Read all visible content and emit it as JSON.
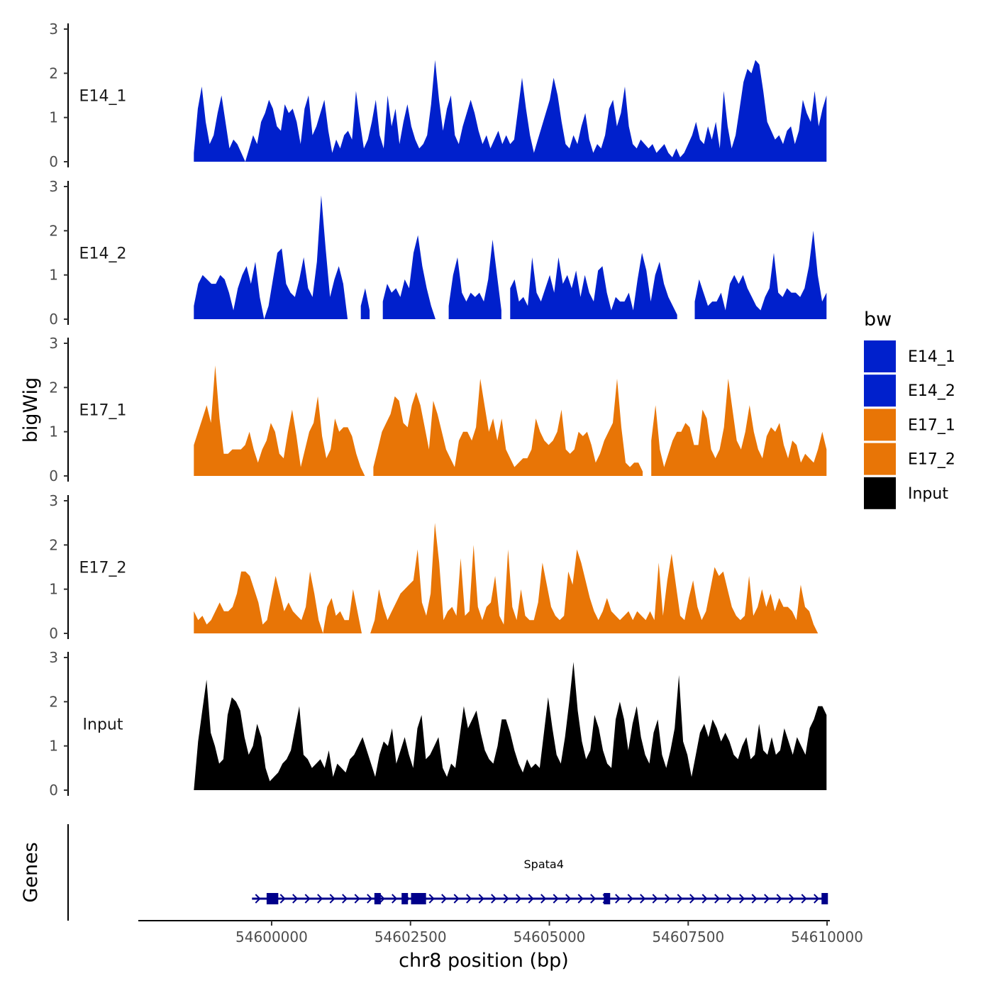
{
  "chart_data": {
    "type": "area",
    "chromosome": "chr8",
    "xlabel": "chr8 position (bp)",
    "ylabel": "bigWig",
    "genes_label": "Genes",
    "xlim": [
      54597600,
      54610050
    ],
    "x_ticks": [
      54600000,
      54602500,
      54605000,
      54607500,
      54610000
    ],
    "x_tick_labels": [
      "54600000",
      "54602500",
      "54605000",
      "54607500",
      "54610000"
    ],
    "ylim": [
      0,
      3
    ],
    "y_ticks": [
      0,
      1,
      2,
      3
    ],
    "y_tick_labels": [
      "0",
      "1",
      "2",
      "3"
    ],
    "track_start": 54598600,
    "track_end": 54609990,
    "colors": {
      "E14_1": "#0020cc",
      "E14_2": "#0020cc",
      "E17_1": "#e87506",
      "E17_2": "#e87506",
      "Input": "#000000",
      "gene": "#00008b"
    },
    "legend": {
      "title": "bw",
      "items": [
        {
          "label": "E14_1",
          "color": "#0020cc"
        },
        {
          "label": "E14_2",
          "color": "#0020cc"
        },
        {
          "label": "E17_1",
          "color": "#e87506"
        },
        {
          "label": "E17_2",
          "color": "#e87506"
        },
        {
          "label": "Input",
          "color": "#000000"
        }
      ]
    },
    "tracks": [
      {
        "name": "E14_1",
        "label": "E14_1",
        "color": "#0020cc",
        "values": [
          0.2,
          1.2,
          1.7,
          0.9,
          0.4,
          0.6,
          1.1,
          1.5,
          0.9,
          0.3,
          0.5,
          0.4,
          0.2,
          0,
          0.3,
          0.6,
          0.4,
          0.9,
          1.1,
          1.4,
          1.2,
          0.8,
          0.7,
          1.3,
          1.1,
          1.2,
          0.9,
          0.4,
          1.2,
          1.5,
          0.6,
          0.8,
          1.1,
          1.4,
          0.7,
          0.2,
          0.5,
          0.3,
          0.6,
          0.7,
          0.5,
          1.6,
          0.9,
          0.3,
          0.5,
          0.9,
          1.4,
          0.6,
          0.3,
          1.5,
          0.8,
          1.2,
          0.4,
          0.9,
          1.3,
          0.8,
          0.5,
          0.3,
          0.4,
          0.6,
          1.3,
          2.3,
          1.4,
          0.7,
          1.2,
          1.5,
          0.6,
          0.4,
          0.8,
          1.1,
          1.4,
          1.1,
          0.7,
          0.4,
          0.6,
          0.3,
          0.5,
          0.7,
          0.4,
          0.6,
          0.4,
          0.5,
          1.2,
          1.9,
          1.2,
          0.6,
          0.2,
          0.5,
          0.8,
          1.1,
          1.4,
          1.9,
          1.5,
          0.9,
          0.4,
          0.3,
          0.6,
          0.4,
          0.8,
          1.1,
          0.5,
          0.2,
          0.4,
          0.3,
          0.6,
          1.2,
          1.4,
          0.8,
          1.1,
          1.7,
          0.8,
          0.4,
          0.3,
          0.5,
          0.4,
          0.3,
          0.4,
          0.2,
          0.3,
          0.4,
          0.2,
          0.1,
          0.3,
          0.1,
          0.2,
          0.4,
          0.6,
          0.9,
          0.5,
          0.4,
          0.8,
          0.5,
          0.9,
          0.3,
          1.6,
          0.8,
          0.3,
          0.6,
          1.2,
          1.8,
          2.1,
          2.0,
          2.3,
          2.2,
          1.6,
          0.9,
          0.7,
          0.5,
          0.6,
          0.4,
          0.7,
          0.8,
          0.4,
          0.7,
          1.4,
          1.1,
          0.9,
          1.6,
          0.8,
          1.2,
          1.5
        ]
      },
      {
        "name": "E14_2",
        "label": "E14_2",
        "color": "#0020cc",
        "values": [
          0.3,
          0.8,
          1.0,
          0.9,
          0.8,
          0.8,
          1.0,
          0.9,
          0.6,
          0.2,
          0.7,
          1.0,
          1.2,
          0.8,
          1.3,
          0.5,
          0,
          0.3,
          0.9,
          1.5,
          1.6,
          0.8,
          0.6,
          0.5,
          0.9,
          1.4,
          0.7,
          0.5,
          1.3,
          2.8,
          1.6,
          0.5,
          0.9,
          1.2,
          0.8,
          0,
          null,
          null,
          0.3,
          0.7,
          0.2,
          null,
          null,
          0.4,
          0.8,
          0.6,
          0.7,
          0.5,
          0.9,
          0.7,
          1.5,
          1.9,
          1.2,
          0.7,
          0.3,
          0,
          null,
          null,
          0.3,
          1.0,
          1.4,
          0.6,
          0.4,
          0.6,
          0.5,
          0.6,
          0.4,
          0.9,
          1.8,
          1.0,
          0.2,
          null,
          0.7,
          0.9,
          0.4,
          0.5,
          0.3,
          1.4,
          0.6,
          0.4,
          0.7,
          1.0,
          0.6,
          1.4,
          0.8,
          1.0,
          0.7,
          1.1,
          0.5,
          1.0,
          0.6,
          0.4,
          1.1,
          1.2,
          0.6,
          0.2,
          0.5,
          0.4,
          0.4,
          0.6,
          0.2,
          0.9,
          1.5,
          1.1,
          0.4,
          1.0,
          1.3,
          0.8,
          0.5,
          0.3,
          0.1,
          null,
          null,
          null,
          0.4,
          0.9,
          0.6,
          0.3,
          0.4,
          0.4,
          0.6,
          0.2,
          0.8,
          1.0,
          0.8,
          1.0,
          0.7,
          0.5,
          0.3,
          0.2,
          0.5,
          0.7,
          1.5,
          0.6,
          0.5,
          0.7,
          0.6,
          0.6,
          0.5,
          0.7,
          1.2,
          2.0,
          1.0,
          0.4,
          0.6
        ]
      },
      {
        "name": "E17_1",
        "label": "E17_1",
        "color": "#e87506",
        "values": [
          0.7,
          1.0,
          1.3,
          1.6,
          1.2,
          2.5,
          1.3,
          0.5,
          0.5,
          0.6,
          0.6,
          0.6,
          0.7,
          1.0,
          0.6,
          0.3,
          0.6,
          0.8,
          1.2,
          1.0,
          0.5,
          0.4,
          1.0,
          1.5,
          0.9,
          0.2,
          0.6,
          1.0,
          1.2,
          1.8,
          0.9,
          0.4,
          0.6,
          1.3,
          1.0,
          1.1,
          1.1,
          0.9,
          0.5,
          0.2,
          0,
          null,
          0.2,
          0.6,
          1.0,
          1.2,
          1.4,
          1.8,
          1.7,
          1.2,
          1.1,
          1.6,
          1.9,
          1.6,
          1.1,
          0.6,
          1.7,
          1.4,
          1.0,
          0.6,
          0.4,
          0.2,
          0.8,
          1.0,
          1.0,
          0.8,
          1.1,
          2.2,
          1.6,
          1.0,
          1.3,
          0.8,
          1.3,
          0.6,
          0.4,
          0.2,
          0.3,
          0.4,
          0.4,
          0.6,
          1.3,
          1.0,
          0.8,
          0.7,
          0.8,
          1.0,
          1.5,
          0.6,
          0.5,
          0.6,
          1.0,
          0.9,
          1.0,
          0.7,
          0.3,
          0.5,
          0.8,
          1.0,
          1.2,
          2.2,
          1.1,
          0.3,
          0.2,
          0.3,
          0.3,
          0.1,
          null,
          0.8,
          1.6,
          0.6,
          0.2,
          0.5,
          0.8,
          1.0,
          1.0,
          1.2,
          1.1,
          0.7,
          0.7,
          1.5,
          1.3,
          0.6,
          0.4,
          0.6,
          1.1,
          2.2,
          1.5,
          0.8,
          0.6,
          1.0,
          1.6,
          1.0,
          0.6,
          0.4,
          0.9,
          1.1,
          1.0,
          1.2,
          0.7,
          0.4,
          0.8,
          0.7,
          0.3,
          0.5,
          0.4,
          0.3,
          0.6,
          1.0,
          0.6
        ]
      },
      {
        "name": "E17_2",
        "label": "E17_2",
        "color": "#e87506",
        "values": [
          0.5,
          0.3,
          0.4,
          0.2,
          0.3,
          0.5,
          0.7,
          0.5,
          0.5,
          0.6,
          0.9,
          1.4,
          1.4,
          1.3,
          1.0,
          0.7,
          0.2,
          0.3,
          0.8,
          1.3,
          0.9,
          0.5,
          0.7,
          0.5,
          0.4,
          0.3,
          0.6,
          1.4,
          0.9,
          0.3,
          0,
          0.6,
          0.8,
          0.4,
          0.5,
          0.3,
          0.3,
          1.0,
          0.5,
          0,
          null,
          0,
          0.3,
          1.0,
          0.6,
          0.3,
          0.5,
          0.7,
          0.9,
          1.0,
          1.1,
          1.2,
          1.9,
          0.7,
          0.4,
          0.9,
          2.5,
          1.6,
          0.3,
          0.5,
          0.6,
          0.4,
          1.7,
          0.4,
          0.5,
          2.0,
          0.6,
          0.3,
          0.6,
          0.7,
          1.3,
          0.4,
          0.2,
          1.9,
          0.6,
          0.3,
          1.0,
          0.4,
          0.3,
          0.3,
          0.7,
          1.6,
          1.1,
          0.6,
          0.4,
          0.3,
          0.4,
          1.4,
          1.1,
          1.9,
          1.6,
          1.2,
          0.8,
          0.5,
          0.3,
          0.5,
          0.8,
          0.5,
          0.4,
          0.3,
          0.4,
          0.5,
          0.3,
          0.5,
          0.4,
          0.3,
          0.5,
          0.3,
          1.6,
          0.4,
          1.2,
          1.8,
          1.1,
          0.4,
          0.3,
          0.8,
          1.2,
          0.6,
          0.3,
          0.5,
          1.0,
          1.5,
          1.3,
          1.4,
          1.0,
          0.6,
          0.4,
          0.3,
          0.4,
          1.3,
          0.4,
          0.6,
          1.0,
          0.6,
          0.9,
          0.5,
          0.8,
          0.6,
          0.6,
          0.5,
          0.3,
          1.1,
          0.6,
          0.5,
          0.2,
          0,
          null,
          0.1
        ]
      },
      {
        "name": "Input",
        "label": "Input",
        "color": "#000000",
        "values": [
          0,
          1.1,
          1.8,
          2.5,
          1.3,
          1.0,
          0.6,
          0.7,
          1.7,
          2.1,
          2.0,
          1.8,
          1.2,
          0.8,
          1.0,
          1.5,
          1.2,
          0.5,
          0.2,
          0.3,
          0.4,
          0.6,
          0.7,
          0.9,
          1.4,
          1.9,
          0.8,
          0.7,
          0.5,
          0.6,
          0.7,
          0.5,
          0.9,
          0.3,
          0.6,
          0.5,
          0.4,
          0.7,
          0.8,
          1.0,
          1.2,
          0.9,
          0.6,
          0.3,
          0.8,
          1.1,
          1.0,
          1.4,
          0.6,
          0.9,
          1.2,
          0.8,
          0.5,
          1.4,
          1.7,
          0.7,
          0.8,
          1.0,
          1.2,
          0.5,
          0.3,
          0.6,
          0.5,
          1.2,
          1.9,
          1.4,
          1.6,
          1.8,
          1.3,
          0.9,
          0.7,
          0.6,
          1.0,
          1.6,
          1.6,
          1.3,
          0.9,
          0.6,
          0.4,
          0.7,
          0.5,
          0.6,
          0.5,
          1.3,
          2.1,
          1.4,
          0.8,
          0.6,
          1.2,
          2.0,
          2.9,
          1.8,
          1.1,
          0.7,
          0.9,
          1.7,
          1.4,
          0.9,
          0.6,
          0.5,
          1.6,
          2.0,
          1.6,
          0.9,
          1.5,
          1.9,
          1.2,
          0.8,
          0.6,
          1.3,
          1.6,
          0.8,
          0.5,
          0.9,
          1.4,
          2.6,
          1.1,
          0.8,
          0.3,
          0.8,
          1.3,
          1.5,
          1.2,
          1.6,
          1.4,
          1.1,
          1.3,
          1.1,
          0.8,
          0.7,
          1.0,
          1.2,
          0.7,
          0.8,
          1.5,
          0.9,
          0.8,
          1.2,
          0.8,
          0.9,
          1.4,
          1.1,
          0.8,
          1.2,
          1.0,
          0.8,
          1.4,
          1.6,
          1.9,
          1.9,
          1.7
        ]
      }
    ],
    "gene": {
      "name": "Spata4",
      "start": 54599800,
      "end": 54610000,
      "strand": "+",
      "exons": [
        [
          54599910,
          54600120
        ],
        [
          54601850,
          54601960
        ],
        [
          54602340,
          54602450
        ],
        [
          54602510,
          54602780
        ],
        [
          54605980,
          54606070
        ],
        [
          54609900,
          54610000
        ]
      ]
    }
  }
}
